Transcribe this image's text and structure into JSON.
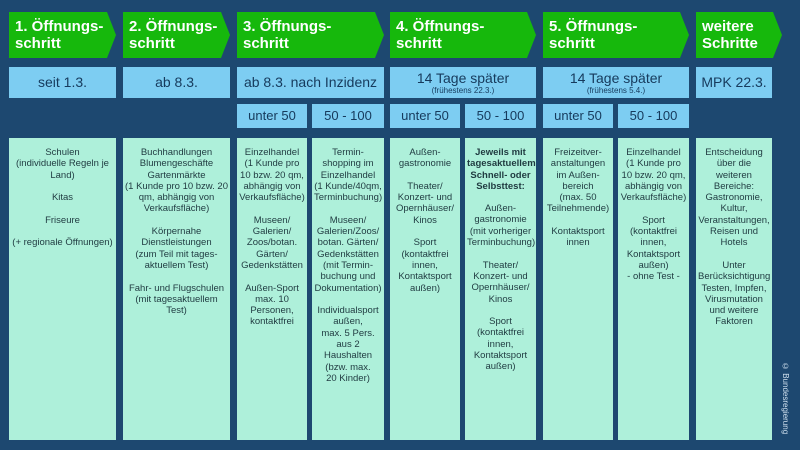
{
  "colors": {
    "background": "#1d4870",
    "header": "#16b80c",
    "date": "#7dcdf2",
    "content": "#aef0da"
  },
  "steps": [
    {
      "title": "1. Öffnungs-\nschritt",
      "date": "seit 1.3.",
      "content": "Schulen\n(individuelle Regeln je Land)\n\nKitas\n\nFriseure\n\n(+ regionale Öffnungen)"
    },
    {
      "title": "2. Öffnungs-\nschritt",
      "date": "ab 8.3.",
      "content": "Buchhandlungen\nBlumengeschäfte\nGartenmärkte\n(1 Kunde pro 10 bzw. 20 qm, abhängig von Verkaufsfläche)\n\nKörpernahe Dienstleistungen\n(zum Teil mit tages-aktuellem Test)\n\nFahr- und Flugschulen\n(mit tagesaktuellem Test)"
    },
    {
      "title": "3. Öffnungs-\nschritt",
      "date": "ab 8.3. nach Inzidenz",
      "sub": [
        "unter 50",
        "50 - 100"
      ],
      "content": [
        "Einzelhandel\n(1 Kunde pro 10 bzw. 20 qm, abhängig von Verkaufsfläche)\n\nMuseen/\nGalerien/\nZoos/botan.\nGärten/\nGedenkstätten\n\nAußen-Sport\nmax. 10\nPersonen,\nkontaktfrei",
        "Termin-\nshopping im Einzelhandel\n(1 Kunde/40qm, Terminbuchung)\n\nMuseen/\nGalerien/Zoos/\nbotan. Gärten/\nGedenkstätten\n(mit Termin-\nbuchung und Dokumentation)\n\nIndividualsport\naußen,\nmax. 5 Pers. aus 2 Haushalten\n(bzw. max.\n20 Kinder)"
      ]
    },
    {
      "title": "4. Öffnungs-\nschritt",
      "date": "14 Tage später",
      "date_note": "(frühestens 22.3.)",
      "sub": [
        "unter 50",
        "50 - 100"
      ],
      "content": [
        "Außen-\ngastronomie\n\nTheater/\nKonzert- und\nOpernhäuser/\nKinos\n\nSport\n(kontaktfrei\ninnen,\nKontaktsport\naußen)"
      ],
      "content_b_heading": "Jeweils mit tagesaktuellem Schnell- oder Selbsttest:",
      "content_b": "Außen-\ngastronomie\n(mit vorheriger Terminbuchung)\n\nTheater/\nKonzert- und\nOpernhäuser/\nKinos\n\nSport\n(kontaktfrei\ninnen,\nKontaktsport\naußen)"
    },
    {
      "title": "5. Öffnungs-\nschritt",
      "date": "14 Tage später",
      "date_note": "(frühestens 5.4.)",
      "sub": [
        "unter 50",
        "50 - 100"
      ],
      "content": [
        "Freizeitver-\nanstaltungen\nim Außen-\nbereich\n(max. 50\nTeilnehmende)\n\nKontaktsport\ninnen",
        "Einzelhandel\n(1 Kunde pro\n10 bzw. 20 qm,\nabhängig von\nVerkaufsfläche)\n\nSport\n(kontaktfrei\ninnen,\nKontaktsport\naußen)\n- ohne Test -"
      ]
    },
    {
      "title": "weitere\nSchritte",
      "date": "MPK 22.3.",
      "content": "Entscheidung\nüber die weiteren\nBereiche:\nGastronomie,\nKultur,\nVeranstaltungen,\nReisen und\nHotels\n\nUnter\nBerücksichtigung\nTesten, Impfen,\nVirusmutation\nund weitere\nFaktoren"
    }
  ],
  "copyright": "© Bundesregierung"
}
